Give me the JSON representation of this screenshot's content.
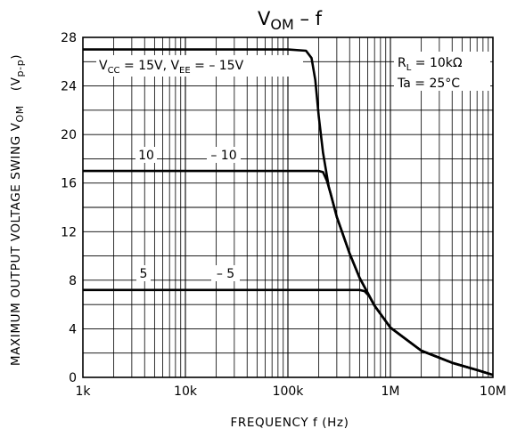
{
  "chart_data": {
    "type": "line",
    "title": {
      "main": "V",
      "sub": "OM",
      "rest": "  –  f"
    },
    "xlabel": "FREQUENCY   f   (Hz)",
    "ylabel": {
      "main": "MAXIMUM OUTPUT VOLTAGE SWING  V",
      "sub": "OM",
      "unit": "(V",
      "unit_sub": "p-p",
      "unit_close": ")"
    },
    "xscale": "log",
    "xlim": [
      1000,
      10000000
    ],
    "ylim": [
      0,
      28
    ],
    "grid": true,
    "x_ticks": [
      {
        "value": 1000,
        "label": "1k"
      },
      {
        "value": 10000,
        "label": "10k"
      },
      {
        "value": 100000,
        "label": "100k"
      },
      {
        "value": 1000000,
        "label": "1M"
      },
      {
        "value": 10000000,
        "label": "10M"
      }
    ],
    "y_ticks": [
      {
        "value": 0,
        "label": "0"
      },
      {
        "value": 4,
        "label": "4"
      },
      {
        "value": 8,
        "label": "8"
      },
      {
        "value": 12,
        "label": "12"
      },
      {
        "value": 16,
        "label": "16"
      },
      {
        "value": 20,
        "label": "20"
      },
      {
        "value": 24,
        "label": "24"
      },
      {
        "value": 28,
        "label": "28"
      }
    ],
    "series": [
      {
        "label": {
          "vcc": "V",
          "vcc_sub": "CC",
          "vcc_val": " = 15V,  V",
          "vee_sub": "EE",
          "vee_val": " = – 15V"
        },
        "x": [
          1000,
          100000,
          150000,
          170000,
          185000,
          200000,
          220000,
          250000,
          300000,
          400000,
          500000,
          700000,
          1000000,
          2000000,
          4000000,
          7000000,
          10000000
        ],
        "y": [
          27,
          27,
          26.9,
          26.3,
          24.5,
          21.5,
          18.5,
          15.7,
          13.2,
          10.2,
          8.2,
          5.9,
          4.1,
          2.2,
          1.2,
          0.6,
          0.2
        ]
      },
      {
        "label": {
          "left": "10",
          "right": "– 10"
        },
        "x": [
          1000,
          200000,
          220000,
          240000,
          260000,
          300000,
          400000,
          500000,
          700000,
          1000000,
          2000000,
          4000000,
          7000000,
          10000000
        ],
        "y": [
          17,
          17,
          16.9,
          16.2,
          15.2,
          13.2,
          10.2,
          8.2,
          5.9,
          4.1,
          2.2,
          1.2,
          0.6,
          0.2
        ]
      },
      {
        "label": {
          "left": "5",
          "right": "– 5"
        },
        "x": [
          1000,
          500000,
          560000,
          620000,
          700000,
          1000000,
          2000000,
          4000000,
          7000000,
          10000000
        ],
        "y": [
          7.2,
          7.2,
          7.1,
          6.7,
          5.9,
          4.1,
          2.2,
          1.2,
          0.6,
          0.2
        ]
      }
    ],
    "annotations": {
      "rl": {
        "main": "R",
        "sub": "L",
        "rest": " = 10kΩ"
      },
      "ta": "Ta = 25°C"
    }
  }
}
